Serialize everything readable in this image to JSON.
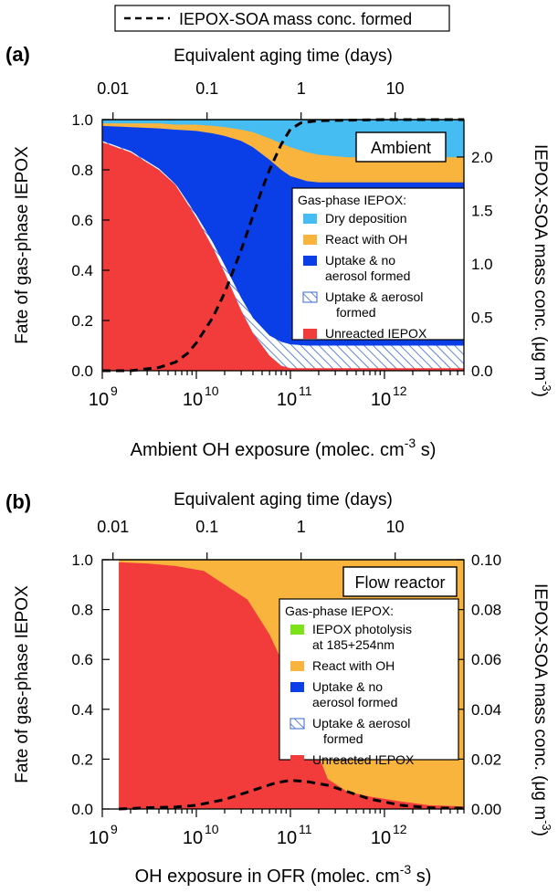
{
  "figure_legend": "IEPOX-SOA mass conc. formed",
  "chart_data": [
    {
      "type": "area",
      "panel_label": "(a)",
      "box_label": "Ambient",
      "xlabel": "Ambient OH exposure (molec. cm",
      "xlabel_sup": "-3",
      "xlabel_tail": " s)",
      "ylabel": "Fate of gas-phase IEPOX",
      "y2label": "IEPOX-SOA mass conc. (μg m",
      "y2label_sup": "-3",
      "y2label_tail": ")",
      "top_axis_label": "Equivalent aging time (days)",
      "x_scale": "log",
      "xlim": [
        1000000000.0,
        7000000000000.0
      ],
      "ylim": [
        0,
        1.0
      ],
      "y2lim": [
        0,
        2.35
      ],
      "x_tick_labels": [
        {
          "value": 1000000000.0,
          "base": "10",
          "exp": "9"
        },
        {
          "value": 10000000000.0,
          "base": "10",
          "exp": "10"
        },
        {
          "value": 100000000000.0,
          "base": "10",
          "exp": "11"
        },
        {
          "value": 1000000000000.0,
          "base": "10",
          "exp": "12"
        }
      ],
      "y_ticks": [
        {
          "value": 0.0,
          "label": "0.0"
        },
        {
          "value": 0.2,
          "label": "0.2"
        },
        {
          "value": 0.4,
          "label": "0.4"
        },
        {
          "value": 0.6,
          "label": "0.6"
        },
        {
          "value": 0.8,
          "label": "0.8"
        },
        {
          "value": 1.0,
          "label": "1.0"
        }
      ],
      "y2_ticks": [
        {
          "value": 0.0,
          "label": "0.0"
        },
        {
          "value": 0.5,
          "label": "0.5"
        },
        {
          "value": 1.0,
          "label": "1.0"
        },
        {
          "value": 1.5,
          "label": "1.5"
        },
        {
          "value": 2.0,
          "label": "2.0"
        }
      ],
      "top_ticks": [
        {
          "exposure": 1300000000.0,
          "label": "0.01"
        },
        {
          "exposure": 13000000000.0,
          "label": "0.1"
        },
        {
          "exposure": 130000000000.0,
          "label": "1"
        },
        {
          "exposure": 1300000000000.0,
          "label": "10"
        }
      ],
      "legend_title": "Gas-phase IEPOX:",
      "legend": [
        {
          "lines": [
            "Dry deposition"
          ],
          "color": "#45bdf2",
          "hatched": false
        },
        {
          "lines": [
            "React with OH"
          ],
          "color": "#f9b43d",
          "hatched": false
        },
        {
          "lines": [
            "Uptake & no",
            "aerosol formed"
          ],
          "color": "#0a3fe8",
          "hatched": false
        },
        {
          "lines": [
            "Uptake & aerosol",
            "formed"
          ],
          "color": "#3a64d8",
          "hatched": true
        },
        {
          "lines": [
            "Unreacted IEPOX"
          ],
          "color": "#f23b3b",
          "hatched": false
        }
      ],
      "x": [
        1000000000.0,
        2000000000.0,
        4000000000.0,
        6000000000.0,
        10000000000.0,
        15000000000.0,
        20000000000.0,
        30000000000.0,
        40000000000.0,
        60000000000.0,
        80000000000.0,
        100000000000.0,
        150000000000.0,
        200000000000.0,
        400000000000.0,
        1000000000000.0,
        3000000000000.0,
        7000000000000.0
      ],
      "series": [
        {
          "layer": "unreacted",
          "color": "#f23b3b",
          "hatched": false,
          "top": [
            0.91,
            0.87,
            0.8,
            0.74,
            0.61,
            0.49,
            0.39,
            0.24,
            0.15,
            0.06,
            0.02,
            0.01,
            0.01,
            0.01,
            0.01,
            0.01,
            0.01,
            0.01
          ]
        },
        {
          "layer": "uptake-aerosol",
          "color": "#3a64d8",
          "hatched": true,
          "top": [
            0.915,
            0.875,
            0.805,
            0.745,
            0.62,
            0.51,
            0.42,
            0.29,
            0.21,
            0.14,
            0.115,
            0.105,
            0.1,
            0.1,
            0.1,
            0.1,
            0.1,
            0.1
          ]
        },
        {
          "layer": "uptake-no-aerosol",
          "color": "#0a3fe8",
          "hatched": false,
          "top": [
            0.975,
            0.97,
            0.965,
            0.96,
            0.955,
            0.945,
            0.935,
            0.915,
            0.89,
            0.84,
            0.8,
            0.775,
            0.755,
            0.75,
            0.75,
            0.75,
            0.75,
            0.75
          ]
        },
        {
          "layer": "react-oh",
          "color": "#f9b43d",
          "hatched": false,
          "top": [
            0.985,
            0.985,
            0.985,
            0.98,
            0.98,
            0.975,
            0.97,
            0.96,
            0.95,
            0.925,
            0.905,
            0.89,
            0.87,
            0.86,
            0.85,
            0.85,
            0.85,
            0.85
          ]
        },
        {
          "layer": "dry-deposition",
          "color": "#45bdf2",
          "hatched": false,
          "top": [
            1,
            1,
            1,
            1,
            1,
            1,
            1,
            1,
            1,
            1,
            1,
            1,
            1,
            1,
            1,
            1,
            1,
            1
          ]
        }
      ],
      "soa_line": {
        "x": [
          1000000000.0,
          2000000000.0,
          4000000000.0,
          6000000000.0,
          8000000000.0,
          10000000000.0,
          15000000000.0,
          20000000000.0,
          30000000000.0,
          40000000000.0,
          50000000000.0,
          60000000000.0,
          80000000000.0,
          100000000000.0,
          130000000000.0,
          200000000000.0,
          1000000000000.0,
          7000000000000.0
        ],
        "y": [
          0.0,
          0.0,
          0.03,
          0.08,
          0.16,
          0.26,
          0.5,
          0.73,
          1.13,
          1.45,
          1.7,
          1.88,
          2.12,
          2.26,
          2.32,
          2.34,
          2.35,
          2.35
        ]
      }
    },
    {
      "type": "area",
      "panel_label": "(b)",
      "box_label": "Flow reactor",
      "xlabel": "OH exposure in OFR (molec. cm",
      "xlabel_sup": "-3",
      "xlabel_tail": " s)",
      "ylabel": "Fate of gas-phase IEPOX",
      "y2label": "IEPOX-SOA mass conc. (μg m",
      "y2label_sup": "-3",
      "y2label_tail": ")",
      "top_axis_label": "Equivalent aging time (days)",
      "x_scale": "log",
      "xlim": [
        1000000000.0,
        7000000000000.0
      ],
      "ylim": [
        0,
        1.0
      ],
      "y2lim": [
        0,
        0.1
      ],
      "x_tick_labels": [
        {
          "value": 1000000000.0,
          "base": "10",
          "exp": "9"
        },
        {
          "value": 10000000000.0,
          "base": "10",
          "exp": "10"
        },
        {
          "value": 100000000000.0,
          "base": "10",
          "exp": "11"
        },
        {
          "value": 1000000000000.0,
          "base": "10",
          "exp": "12"
        }
      ],
      "y_ticks": [
        {
          "value": 0.0,
          "label": "0.0"
        },
        {
          "value": 0.2,
          "label": "0.2"
        },
        {
          "value": 0.4,
          "label": "0.4"
        },
        {
          "value": 0.6,
          "label": "0.6"
        },
        {
          "value": 0.8,
          "label": "0.8"
        },
        {
          "value": 1.0,
          "label": "1.0"
        }
      ],
      "y2_ticks": [
        {
          "value": 0.0,
          "label": "0.00"
        },
        {
          "value": 0.02,
          "label": "0.02"
        },
        {
          "value": 0.04,
          "label": "0.04"
        },
        {
          "value": 0.06,
          "label": "0.06"
        },
        {
          "value": 0.08,
          "label": "0.08"
        },
        {
          "value": 0.1,
          "label": "0.10"
        }
      ],
      "top_ticks": [
        {
          "exposure": 1300000000.0,
          "label": "0.01"
        },
        {
          "exposure": 13000000000.0,
          "label": "0.1"
        },
        {
          "exposure": 130000000000.0,
          "label": "1"
        },
        {
          "exposure": 1300000000000.0,
          "label": "10"
        }
      ],
      "legend_title": "Gas-phase IEPOX:",
      "legend": [
        {
          "lines": [
            "IEPOX photolysis",
            "at 185+254nm"
          ],
          "color": "#7de21a",
          "hatched": false
        },
        {
          "lines": [
            "React with OH"
          ],
          "color": "#f9b43d",
          "hatched": false
        },
        {
          "lines": [
            "Uptake & no",
            "aerosol formed"
          ],
          "color": "#0a3fe8",
          "hatched": false
        },
        {
          "lines": [
            "Uptake & aerosol",
            "formed"
          ],
          "color": "#3a64d8",
          "hatched": true
        },
        {
          "lines": [
            "Unreacted IEPOX"
          ],
          "color": "#f23b3b",
          "hatched": false
        }
      ],
      "x": [
        1500000000.0,
        3000000000.0,
        6000000000.0,
        12000000000.0,
        20000000000.0,
        35000000000.0,
        60000000000.0,
        100000000000.0,
        150000000000.0,
        250000000000.0,
        400000000000.0,
        700000000000.0,
        1500000000000.0,
        3000000000000.0,
        7000000000000.0
      ],
      "series": [
        {
          "layer": "unreacted",
          "color": "#f23b3b",
          "hatched": false,
          "top": [
            0.99,
            0.985,
            0.975,
            0.955,
            0.9,
            0.84,
            0.7,
            0.52,
            0.33,
            0.12,
            0.07,
            0.05,
            0.03,
            0.015,
            0.01
          ]
        },
        {
          "layer": "react-oh",
          "color": "#f9b43d",
          "hatched": false,
          "top": [
            1,
            1,
            1,
            1,
            1,
            1,
            1,
            1,
            1,
            1,
            1,
            1,
            1,
            1,
            1
          ]
        }
      ],
      "soa_line": {
        "x": [
          1500000000.0,
          3000000000.0,
          6000000000.0,
          10000000000.0,
          20000000000.0,
          40000000000.0,
          70000000000.0,
          100000000000.0,
          150000000000.0,
          250000000000.0,
          400000000000.0,
          700000000000.0,
          1500000000000.0,
          3000000000000.0,
          7000000000000.0
        ],
        "y": [
          0.0,
          0.0005,
          0.0008,
          0.0015,
          0.0038,
          0.0075,
          0.0105,
          0.0115,
          0.011,
          0.0095,
          0.007,
          0.004,
          0.0015,
          0.0005,
          0.0003
        ]
      }
    }
  ]
}
